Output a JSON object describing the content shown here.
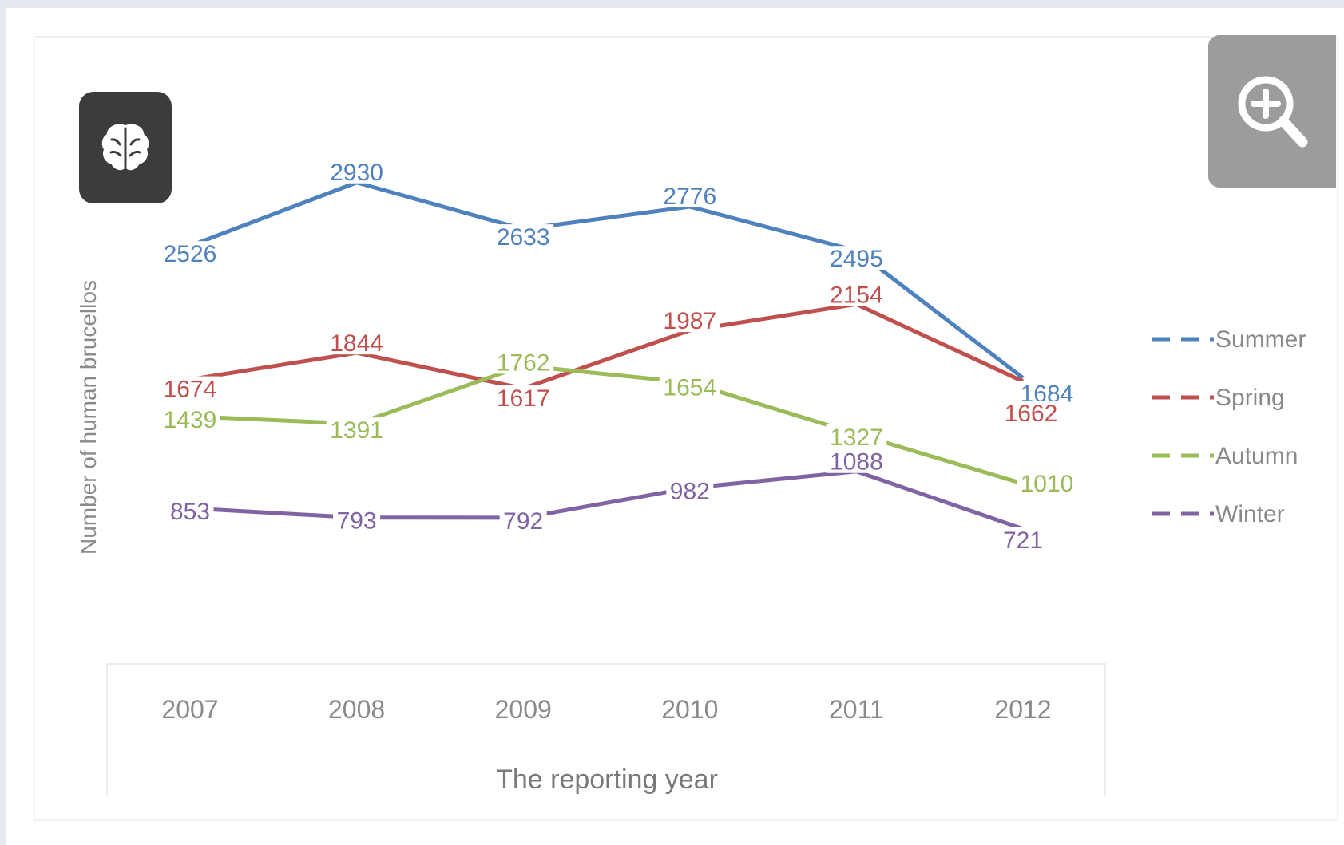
{
  "icons": {
    "left_button": "brain-icon",
    "right_button": "zoom-in-icon"
  },
  "chart_data": {
    "type": "line",
    "title": "",
    "xlabel": "The reporting year",
    "ylabel": "Number of human brucellos",
    "categories": [
      "2007",
      "2008",
      "2009",
      "2010",
      "2011",
      "2012"
    ],
    "ylim": [
      500,
      3100
    ],
    "grid": false,
    "legend": "right",
    "series": [
      {
        "name": "Summer",
        "color": "#4f81bd",
        "values": [
          2526,
          2930,
          2633,
          2776,
          2495,
          1684
        ]
      },
      {
        "name": "Spring",
        "color": "#c0504d",
        "values": [
          1674,
          1844,
          1617,
          1987,
          2154,
          1662
        ]
      },
      {
        "name": "Autumn",
        "color": "#9bbb59",
        "values": [
          1439,
          1391,
          1762,
          1654,
          1327,
          1010
        ]
      },
      {
        "name": "Winter",
        "color": "#8064a2",
        "values": [
          853,
          793,
          792,
          982,
          1088,
          721
        ]
      }
    ]
  }
}
